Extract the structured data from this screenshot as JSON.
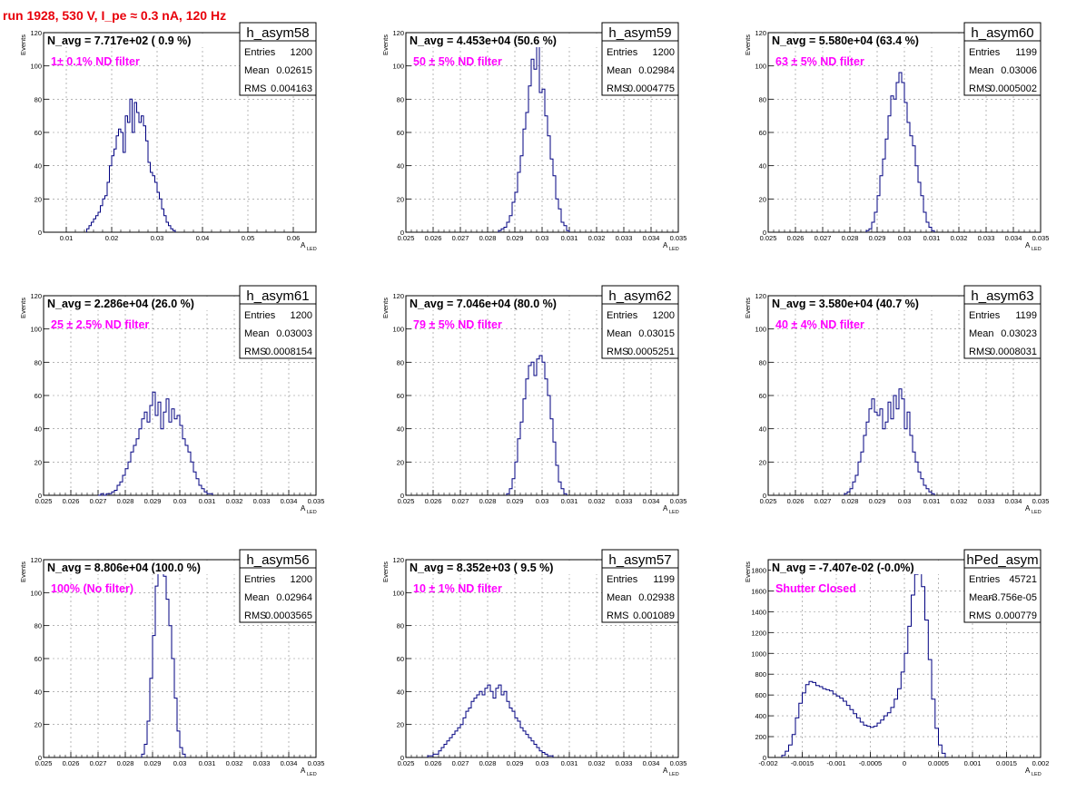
{
  "page_title": "run 1928,   530 V, I_pe ≈ 0.3 nA, 120 Hz",
  "colors": {
    "line": "#000080",
    "nlabel": "#000000",
    "filter": "#ff00ff",
    "title": "#e8000b",
    "grid": "#888888"
  },
  "stats_labels": {
    "entries": "Entries",
    "mean": "Mean",
    "rms": "RMS"
  },
  "ylabel": "Events",
  "xlabel_main": "A",
  "xlabel_sub": "LED",
  "chart_data": [
    {
      "type": "histogram",
      "name": "h_asym58",
      "navg": "N_avg = 7.717e+02 ( 0.9 %)",
      "filter": "1± 0.1% ND filter",
      "stats": {
        "entries": "1200",
        "mean": "0.02615",
        "rms": "0.004163"
      },
      "xlim": [
        0.005,
        0.065
      ],
      "ylim": [
        0,
        120
      ],
      "xticks": [
        0.01,
        0.02,
        0.03,
        0.04,
        0.05,
        0.06
      ],
      "xtick_labels": [
        "0.01",
        "0.02",
        "0.03",
        "0.04",
        "0.05",
        "0.06"
      ],
      "yticks": [
        0,
        20,
        40,
        60,
        80,
        100,
        120
      ],
      "x0": 0.0145,
      "bin_width": 0.0005,
      "values": [
        2,
        4,
        6,
        8,
        10,
        12,
        16,
        20,
        22,
        30,
        40,
        46,
        50,
        58,
        62,
        60,
        48,
        70,
        66,
        80,
        60,
        78,
        72,
        66,
        70,
        64,
        55,
        42,
        36,
        34,
        30,
        24,
        20,
        14,
        10,
        6,
        4,
        2,
        1
      ]
    },
    {
      "type": "histogram",
      "name": "h_asym59",
      "navg": "N_avg = 4.453e+04 (50.6 %)",
      "filter": "50 ± 5% ND filter",
      "stats": {
        "entries": "1200",
        "mean": "0.02984",
        "rms": "0.0004775"
      },
      "xlim": [
        0.025,
        0.035
      ],
      "ylim": [
        0,
        120
      ],
      "xticks": [
        0.025,
        0.026,
        0.027,
        0.028,
        0.029,
        0.03,
        0.031,
        0.032,
        0.033,
        0.034,
        0.035
      ],
      "xtick_labels": [
        "0.025",
        "0.026",
        "0.027",
        "0.028",
        "0.029",
        "0.03",
        "0.031",
        "0.032",
        "0.033",
        "0.034",
        "0.035"
      ],
      "yticks": [
        0,
        20,
        40,
        60,
        80,
        100,
        120
      ],
      "x0": 0.0284,
      "bin_width": 0.0001,
      "values": [
        1,
        2,
        3,
        6,
        10,
        18,
        24,
        36,
        46,
        62,
        72,
        88,
        104,
        98,
        112,
        84,
        86,
        70,
        58,
        44,
        34,
        20,
        14,
        6,
        4,
        1
      ]
    },
    {
      "type": "histogram",
      "name": "h_asym60",
      "navg": "N_avg = 5.580e+04 (63.4 %)",
      "filter": "63 ± 5% ND filter",
      "stats": {
        "entries": "1199",
        "mean": "0.03006",
        "rms": "0.0005002"
      },
      "xlim": [
        0.025,
        0.035
      ],
      "ylim": [
        0,
        120
      ],
      "xticks": [
        0.025,
        0.026,
        0.027,
        0.028,
        0.029,
        0.03,
        0.031,
        0.032,
        0.033,
        0.034,
        0.035
      ],
      "xtick_labels": [
        "0.025",
        "0.026",
        "0.027",
        "0.028",
        "0.029",
        "0.03",
        "0.031",
        "0.032",
        "0.033",
        "0.034",
        "0.035"
      ],
      "yticks": [
        0,
        20,
        40,
        60,
        80,
        100,
        120
      ],
      "x0": 0.0286,
      "bin_width": 0.0001,
      "values": [
        1,
        2,
        6,
        12,
        22,
        34,
        44,
        56,
        70,
        82,
        80,
        90,
        96,
        90,
        78,
        66,
        58,
        52,
        40,
        30,
        22,
        12,
        6,
        3,
        1
      ]
    },
    {
      "type": "histogram",
      "name": "h_asym61",
      "navg": "N_avg = 2.286e+04 (26.0 %)",
      "filter": "25 ± 2.5% ND filter",
      "stats": {
        "entries": "1200",
        "mean": "0.03003",
        "rms": "0.0008154"
      },
      "xlim": [
        0.025,
        0.035
      ],
      "ylim": [
        0,
        120
      ],
      "xticks": [
        0.025,
        0.026,
        0.027,
        0.028,
        0.029,
        0.03,
        0.031,
        0.032,
        0.033,
        0.034,
        0.035
      ],
      "xtick_labels": [
        "0.025",
        "0.026",
        "0.027",
        "0.028",
        "0.029",
        "0.03",
        "0.031",
        "0.032",
        "0.033",
        "0.034",
        "0.035"
      ],
      "yticks": [
        0,
        20,
        40,
        60,
        80,
        100,
        120
      ],
      "x0": 0.027,
      "bin_width": 0.0001,
      "values": [
        0,
        1,
        0,
        1,
        1,
        2,
        3,
        6,
        8,
        12,
        16,
        20,
        26,
        30,
        34,
        40,
        46,
        50,
        44,
        54,
        62,
        48,
        56,
        40,
        50,
        58,
        44,
        52,
        46,
        48,
        42,
        34,
        30,
        26,
        20,
        14,
        10,
        6,
        4,
        2,
        1,
        1
      ]
    },
    {
      "type": "histogram",
      "name": "h_asym62",
      "navg": "N_avg = 7.046e+04 (80.0 %)",
      "filter": "79 ± 5% ND filter",
      "stats": {
        "entries": "1200",
        "mean": "0.03015",
        "rms": "0.0005251"
      },
      "xlim": [
        0.025,
        0.035
      ],
      "ylim": [
        0,
        120
      ],
      "xticks": [
        0.025,
        0.026,
        0.027,
        0.028,
        0.029,
        0.03,
        0.031,
        0.032,
        0.033,
        0.034,
        0.035
      ],
      "xtick_labels": [
        "0.025",
        "0.026",
        "0.027",
        "0.028",
        "0.029",
        "0.03",
        "0.031",
        "0.032",
        "0.033",
        "0.034",
        "0.035"
      ],
      "yticks": [
        0,
        20,
        40,
        60,
        80,
        100,
        120
      ],
      "x0": 0.0287,
      "bin_width": 0.0001,
      "values": [
        1,
        4,
        10,
        20,
        34,
        44,
        58,
        70,
        78,
        80,
        72,
        82,
        84,
        80,
        70,
        60,
        46,
        32,
        18,
        8,
        4,
        1
      ]
    },
    {
      "type": "histogram",
      "name": "h_asym63",
      "navg": "N_avg = 3.580e+04 (40.7 %)",
      "filter": "40 ± 4% ND filter",
      "stats": {
        "entries": "1199",
        "mean": "0.03023",
        "rms": "0.0008031"
      },
      "xlim": [
        0.025,
        0.035
      ],
      "ylim": [
        0,
        120
      ],
      "xticks": [
        0.025,
        0.026,
        0.027,
        0.028,
        0.029,
        0.03,
        0.031,
        0.032,
        0.033,
        0.034,
        0.035
      ],
      "xtick_labels": [
        "0.025",
        "0.026",
        "0.027",
        "0.028",
        "0.029",
        "0.03",
        "0.031",
        "0.032",
        "0.033",
        "0.034",
        "0.035"
      ],
      "yticks": [
        0,
        20,
        40,
        60,
        80,
        100,
        120
      ],
      "x0": 0.0278,
      "bin_width": 0.0001,
      "values": [
        1,
        2,
        4,
        8,
        12,
        20,
        26,
        36,
        44,
        52,
        58,
        50,
        48,
        52,
        40,
        44,
        56,
        46,
        60,
        52,
        64,
        58,
        40,
        50,
        36,
        26,
        20,
        14,
        10,
        6,
        4,
        2,
        1
      ]
    },
    {
      "type": "histogram",
      "name": "h_asym56",
      "navg": "N_avg = 8.806e+04 (100.0 %)",
      "filter": "100% (No filter)",
      "stats": {
        "entries": "1200",
        "mean": "0.02964",
        "rms": "0.0003565"
      },
      "xlim": [
        0.025,
        0.035
      ],
      "ylim": [
        0,
        120
      ],
      "xticks": [
        0.025,
        0.026,
        0.027,
        0.028,
        0.029,
        0.03,
        0.031,
        0.032,
        0.033,
        0.034,
        0.035
      ],
      "xtick_labels": [
        "0.025",
        "0.026",
        "0.027",
        "0.028",
        "0.029",
        "0.03",
        "0.031",
        "0.032",
        "0.033",
        "0.034",
        "0.035"
      ],
      "yticks": [
        0,
        20,
        40,
        60,
        80,
        100,
        120
      ],
      "x0": 0.0286,
      "bin_width": 0.0001,
      "values": [
        2,
        8,
        22,
        48,
        74,
        104,
        118,
        116,
        110,
        96,
        80,
        60,
        36,
        16,
        6,
        2
      ]
    },
    {
      "type": "histogram",
      "name": "h_asym57",
      "navg": "N_avg = 8.352e+03 ( 9.5 %)",
      "filter": "10 ± 1% ND filter",
      "stats": {
        "entries": "1199",
        "mean": "0.02938",
        "rms": "0.001089"
      },
      "xlim": [
        0.025,
        0.035
      ],
      "ylim": [
        0,
        120
      ],
      "xticks": [
        0.025,
        0.026,
        0.027,
        0.028,
        0.029,
        0.03,
        0.031,
        0.032,
        0.033,
        0.034,
        0.035
      ],
      "xtick_labels": [
        "0.025",
        "0.026",
        "0.027",
        "0.028",
        "0.029",
        "0.03",
        "0.031",
        "0.032",
        "0.033",
        "0.034",
        "0.035"
      ],
      "yticks": [
        0,
        20,
        40,
        60,
        80,
        100,
        120
      ],
      "x0": 0.0258,
      "bin_width": 0.0001,
      "values": [
        1,
        1,
        2,
        2,
        4,
        6,
        8,
        10,
        12,
        14,
        16,
        18,
        20,
        24,
        28,
        30,
        34,
        36,
        38,
        40,
        38,
        42,
        44,
        40,
        36,
        42,
        44,
        38,
        40,
        34,
        30,
        28,
        24,
        22,
        18,
        16,
        14,
        12,
        10,
        8,
        6,
        4,
        3,
        2,
        1,
        1
      ]
    },
    {
      "type": "histogram",
      "name": "hPed_asym",
      "navg": "N_avg = -7.407e-02 (-0.0%)",
      "filter": "Shutter Closed",
      "stats": {
        "entries": "45721",
        "mean": "-3.756e-05",
        "rms": "0.000779"
      },
      "xlim": [
        -0.002,
        0.002
      ],
      "ylim": [
        0,
        1900
      ],
      "xticks": [
        -0.002,
        -0.0015,
        -0.001,
        -0.0005,
        0,
        0.0005,
        0.001,
        0.0015,
        0.002
      ],
      "xtick_labels": [
        "-0.002",
        "-0.0015",
        "-0.001",
        "-0.0005",
        "0",
        "0.0005",
        "0.001",
        "0.0015",
        "0.002"
      ],
      "yticks": [
        0,
        200,
        400,
        600,
        800,
        1000,
        1200,
        1400,
        1600,
        1800
      ],
      "x0": -0.0018,
      "bin_width": 5e-05,
      "values": [
        20,
        60,
        120,
        220,
        380,
        520,
        620,
        700,
        730,
        720,
        690,
        680,
        660,
        650,
        640,
        610,
        590,
        570,
        540,
        500,
        460,
        420,
        380,
        340,
        310,
        300,
        290,
        300,
        330,
        360,
        400,
        430,
        480,
        560,
        660,
        820,
        1000,
        1260,
        1560,
        1760,
        1820,
        1640,
        1320,
        940,
        560,
        280,
        120,
        40
      ]
    }
  ]
}
